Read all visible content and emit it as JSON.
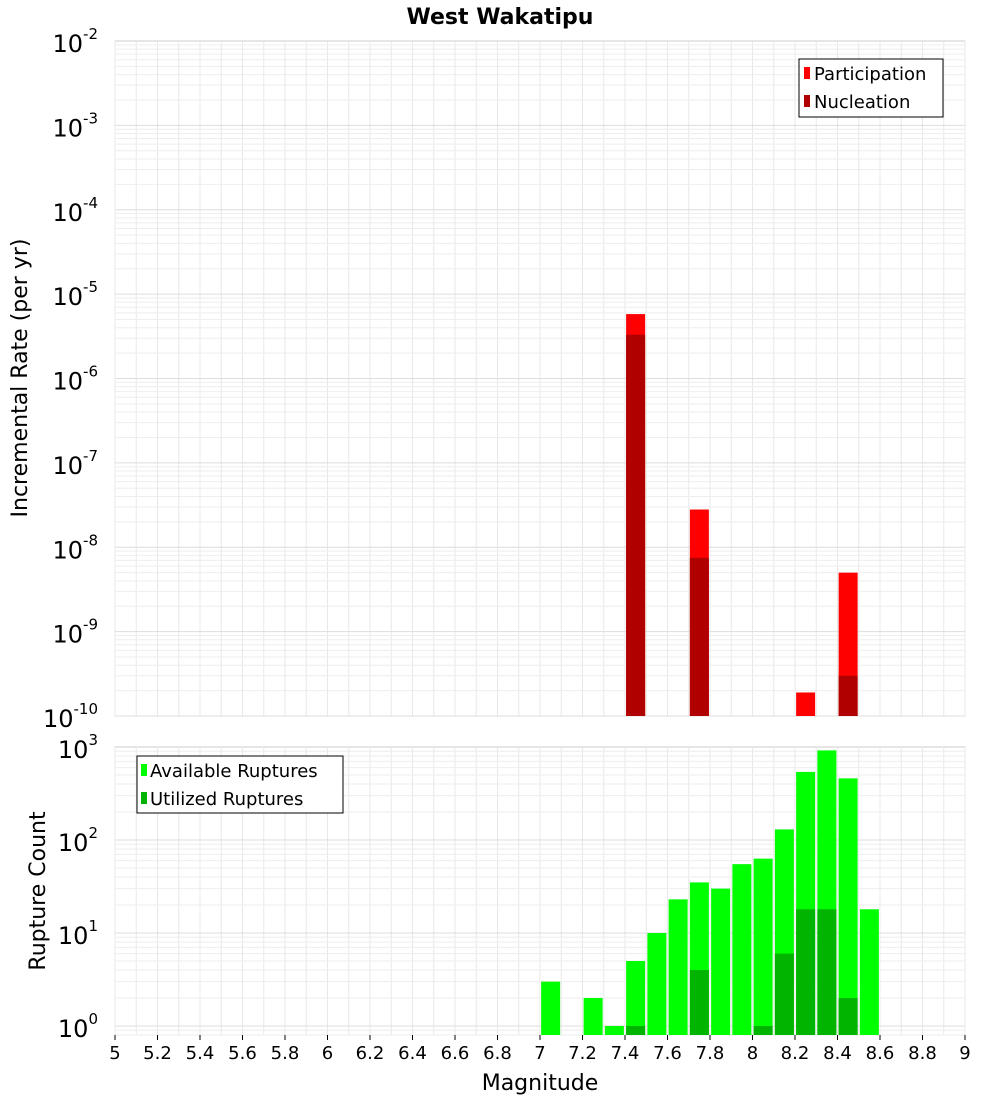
{
  "chart_data": [
    {
      "type": "bar",
      "title": "West Wakatipu",
      "ylabel": "Incremental Rate (per yr)",
      "xlabel": "",
      "yscale": "log",
      "ylim": [
        1e-10,
        0.01
      ],
      "xlim": [
        5,
        9
      ],
      "grid": true,
      "legend_placement": "top-right",
      "y_ticks": [
        {
          "base": "10",
          "exp": "-2",
          "value": 0.01
        },
        {
          "base": "10",
          "exp": "-3",
          "value": 0.001
        },
        {
          "base": "10",
          "exp": "-4",
          "value": 0.0001
        },
        {
          "base": "10",
          "exp": "-5",
          "value": 1e-05
        },
        {
          "base": "10",
          "exp": "-6",
          "value": 1e-06
        },
        {
          "base": "10",
          "exp": "-7",
          "value": 1e-07
        },
        {
          "base": "10",
          "exp": "-8",
          "value": 1e-08
        },
        {
          "base": "10",
          "exp": "-9",
          "value": 1e-09
        },
        {
          "base": "10",
          "exp": "-10",
          "value": 1e-10
        }
      ],
      "series": [
        {
          "name": "Participation",
          "color": "#ff0000",
          "points": [
            {
              "x": 7.45,
              "y": 5.8e-06
            },
            {
              "x": 7.75,
              "y": 2.8e-08
            },
            {
              "x": 8.25,
              "y": 1.9e-10
            },
            {
              "x": 8.45,
              "y": 5e-09
            }
          ]
        },
        {
          "name": "Nucleation",
          "color": "#b00000",
          "points": [
            {
              "x": 7.45,
              "y": 3.3e-06
            },
            {
              "x": 7.75,
              "y": 7.5e-09
            },
            {
              "x": 8.45,
              "y": 3e-10
            }
          ]
        }
      ]
    },
    {
      "type": "bar",
      "title": "",
      "ylabel": "Rupture Count",
      "xlabel": "Magnitude",
      "yscale": "log",
      "ylim": [
        0.8,
        1000
      ],
      "xlim": [
        5,
        9
      ],
      "grid": true,
      "legend_placement": "top-left",
      "y_ticks": [
        {
          "base": "10",
          "exp": "3",
          "value": 1000
        },
        {
          "base": "10",
          "exp": "2",
          "value": 100
        },
        {
          "base": "10",
          "exp": "1",
          "value": 10
        },
        {
          "base": "10",
          "exp": "0",
          "value": 1
        }
      ],
      "x_ticks": [
        "5",
        "5.2",
        "5.4",
        "5.6",
        "5.8",
        "6",
        "6.2",
        "6.4",
        "6.6",
        "6.8",
        "7",
        "7.2",
        "7.4",
        "7.6",
        "7.8",
        "8",
        "8.2",
        "8.4",
        "8.6",
        "8.8",
        "9"
      ],
      "series": [
        {
          "name": "Available Ruptures",
          "color": "#00ff00",
          "points": [
            {
              "x": 7.05,
              "y": 3
            },
            {
              "x": 7.25,
              "y": 2
            },
            {
              "x": 7.35,
              "y": 1
            },
            {
              "x": 7.45,
              "y": 5
            },
            {
              "x": 7.55,
              "y": 10
            },
            {
              "x": 7.65,
              "y": 23
            },
            {
              "x": 7.75,
              "y": 35
            },
            {
              "x": 7.85,
              "y": 30
            },
            {
              "x": 7.95,
              "y": 55
            },
            {
              "x": 8.05,
              "y": 63
            },
            {
              "x": 8.15,
              "y": 130
            },
            {
              "x": 8.25,
              "y": 540
            },
            {
              "x": 8.35,
              "y": 920
            },
            {
              "x": 8.45,
              "y": 460
            },
            {
              "x": 8.55,
              "y": 18
            }
          ]
        },
        {
          "name": "Utilized Ruptures",
          "color": "#00b400",
          "points": [
            {
              "x": 7.45,
              "y": 1
            },
            {
              "x": 7.75,
              "y": 4
            },
            {
              "x": 8.05,
              "y": 1
            },
            {
              "x": 8.15,
              "y": 6
            },
            {
              "x": 8.25,
              "y": 18
            },
            {
              "x": 8.35,
              "y": 18
            },
            {
              "x": 8.45,
              "y": 2
            }
          ]
        }
      ]
    }
  ]
}
